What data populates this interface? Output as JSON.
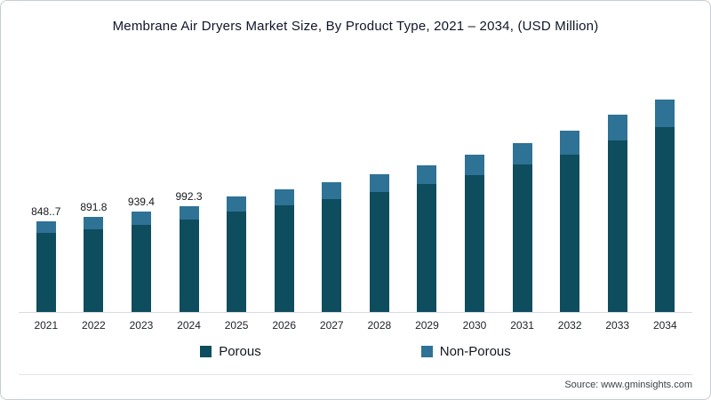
{
  "title": "Membrane Air Dryers Market Size, By Product Type, 2021 – 2034, (USD Million)",
  "source": "Source: www.gminsights.com",
  "legend": [
    {
      "label": "Porous",
      "color": "#0e4d5e"
    },
    {
      "label": "Non-Porous",
      "color": "#2e7296"
    }
  ],
  "chart_data": {
    "type": "bar",
    "stacked": true,
    "title": "Membrane Air Dryers Market Size, By Product Type, 2021 – 2034, (USD Million)",
    "xlabel": "",
    "ylabel": "USD Million",
    "ylim": [
      0,
      2000
    ],
    "grid": false,
    "legend_position": "bottom",
    "categories": [
      "2021",
      "2022",
      "2023",
      "2024",
      "2025",
      "2026",
      "2027",
      "2028",
      "2029",
      "2030",
      "2031",
      "2032",
      "2033",
      "2034"
    ],
    "series": [
      {
        "name": "Porous",
        "color": "#0e4d5e",
        "values": [
          738.4,
          775.9,
          817.3,
          863.3,
          945,
          1004,
          1056,
          1122,
          1196,
          1285,
          1381,
          1476,
          1610,
          1735
        ]
      },
      {
        "name": "Non-Porous",
        "color": "#2e7296",
        "values": [
          110.3,
          115.9,
          122.1,
          129.0,
          141,
          150,
          158,
          168,
          179,
          192,
          206,
          221,
          240,
          259
        ]
      }
    ],
    "totals": [
      848.7,
      891.8,
      939.4,
      992.3,
      1086,
      1154,
      1214,
      1290,
      1375,
      1477,
      1587,
      1697,
      1850,
      1994
    ],
    "data_labels": [
      "848..7",
      "891.8",
      "939.4",
      "992.3",
      "",
      "",
      "",
      "",
      "",
      "",
      "",
      "",
      "",
      ""
    ]
  }
}
